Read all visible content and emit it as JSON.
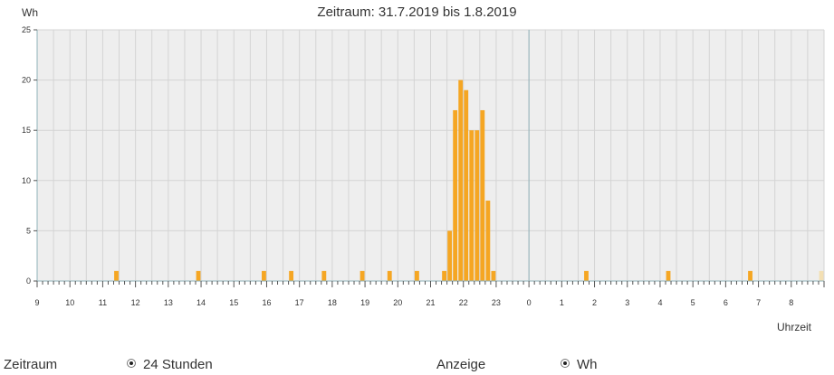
{
  "header": {
    "title": "Zeitraum: 31.7.2019 bis 1.8.2019",
    "y_unit": "Wh",
    "x_unit": "Uhrzeit"
  },
  "controls": {
    "zeitraum_label": "Zeitraum",
    "zeitraum_option": "24 Stunden",
    "anzeige_label": "Anzeige",
    "anzeige_option": "Wh"
  },
  "colors": {
    "bar": "#f5a623",
    "bar_faded": "#f3dfb3",
    "plot_bg": "#eeeeee",
    "grid": "#d4d4d4",
    "axis": "#8fb1b8"
  },
  "chart_data": {
    "type": "bar",
    "title": "Zeitraum: 31.7.2019 bis 1.8.2019",
    "ylabel": "Wh",
    "xlabel": "Uhrzeit",
    "ylim": [
      0,
      25
    ],
    "yticks": [
      0,
      5,
      10,
      15,
      20,
      25
    ],
    "xticks": [
      "9",
      "10",
      "11",
      "12",
      "13",
      "14",
      "15",
      "16",
      "17",
      "18",
      "19",
      "20",
      "21",
      "22",
      "23",
      "0",
      "1",
      "2",
      "3",
      "4",
      "5",
      "6",
      "7",
      "8"
    ],
    "grid": true,
    "interval_minutes": 10,
    "series": [
      {
        "values": [
          {
            "time": "11:20",
            "wh": 1
          },
          {
            "time": "13:50",
            "wh": 1
          },
          {
            "time": "15:50",
            "wh": 1
          },
          {
            "time": "16:40",
            "wh": 1
          },
          {
            "time": "17:40",
            "wh": 1
          },
          {
            "time": "18:50",
            "wh": 1
          },
          {
            "time": "19:40",
            "wh": 1
          },
          {
            "time": "20:30",
            "wh": 1
          },
          {
            "time": "21:20",
            "wh": 1
          },
          {
            "time": "21:30",
            "wh": 5
          },
          {
            "time": "21:40",
            "wh": 17
          },
          {
            "time": "21:50",
            "wh": 20
          },
          {
            "time": "22:00",
            "wh": 19
          },
          {
            "time": "22:10",
            "wh": 15
          },
          {
            "time": "22:20",
            "wh": 15
          },
          {
            "time": "22:30",
            "wh": 17
          },
          {
            "time": "22:40",
            "wh": 8
          },
          {
            "time": "22:50",
            "wh": 1
          },
          {
            "time": "01:40",
            "wh": 1
          },
          {
            "time": "04:10",
            "wh": 1
          },
          {
            "time": "06:40",
            "wh": 1
          },
          {
            "time": "08:50",
            "wh": 1,
            "faded": true
          }
        ]
      }
    ]
  }
}
